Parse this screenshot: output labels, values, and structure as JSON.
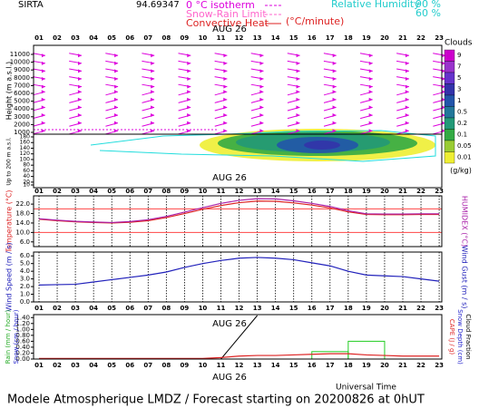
{
  "header": {
    "station": "SIRTA",
    "coords": "94.69347",
    "isotherm": "0 °C isotherm",
    "snow_rain": "Snow-Rain Limit",
    "convective": "Convective Heat",
    "convective_unit": "(°C/minute)",
    "rh": "Relative Humidity",
    "rh90": "90 %",
    "rh60": "60 %"
  },
  "hours": [
    "01",
    "02",
    "03",
    "04",
    "05",
    "06",
    "07",
    "08",
    "09",
    "10",
    "11",
    "12",
    "13",
    "14",
    "15",
    "16",
    "17",
    "18",
    "19",
    "20",
    "21",
    "22",
    "23"
  ],
  "date": "AUG 26",
  "chart_data": [
    {
      "type": "cloud",
      "ylabel": "Height (m a.s.l.)",
      "ylabel_low": "Up to 200 m a.s.l.",
      "yticks": [
        1000,
        2000,
        3000,
        4000,
        5000,
        6000,
        7000,
        8000,
        9000,
        10000,
        11000
      ],
      "ylim": [
        1000,
        11000
      ],
      "low_yticks": [
        10,
        20,
        40,
        60,
        80,
        100,
        120,
        140,
        160,
        180
      ],
      "low_ylim": [
        10,
        180
      ],
      "colorbar": {
        "title": "Clouds",
        "unit": "(g/kg)",
        "labels": [
          9,
          7,
          5,
          3,
          1,
          0.5,
          0.2,
          0.1,
          0.05,
          0.01
        ],
        "colors": [
          "#cc00cc",
          "#9933cc",
          "#6633cc",
          "#3333aa",
          "#2255aa",
          "#227799",
          "#229977",
          "#33aa44",
          "#99cc33",
          "#eeee33"
        ]
      }
    },
    {
      "type": "line",
      "ylabel": "Temperature (°C)",
      "y2label": "HUMIDEX (°C)",
      "ylim": [
        4,
        25.5
      ],
      "yticks": [
        {
          "value": 6,
          "label": "6.0"
        },
        {
          "value": 10,
          "label": "10.0"
        },
        {
          "value": 14,
          "label": "14.0"
        },
        {
          "value": 18,
          "label": "18.0"
        },
        {
          "value": 22,
          "label": "22.0"
        }
      ],
      "ref_lines": [
        10,
        20
      ],
      "grid": true,
      "x": [
        1,
        2,
        3,
        4,
        5,
        6,
        7,
        8,
        9,
        10,
        11,
        12,
        13,
        14,
        15,
        16,
        17,
        18,
        19,
        20,
        21,
        22,
        23
      ],
      "series": [
        {
          "color": "#dd2222",
          "values": [
            15.6,
            15.0,
            14.5,
            14.2,
            14.0,
            14.3,
            15.0,
            16.3,
            18.0,
            19.8,
            21.4,
            22.6,
            23.3,
            23.2,
            22.5,
            21.6,
            20.4,
            18.7,
            17.6,
            17.5,
            17.5,
            17.6,
            17.6
          ]
        },
        {
          "color": "#aa22aa",
          "values": [
            15.8,
            15.2,
            14.7,
            14.4,
            14.2,
            14.6,
            15.4,
            16.8,
            18.6,
            20.5,
            22.3,
            23.6,
            24.3,
            24.2,
            23.4,
            22.3,
            21.0,
            19.2,
            17.9,
            17.8,
            17.8,
            17.9,
            17.9
          ]
        }
      ]
    },
    {
      "type": "line",
      "ylabel": "Wind Speed (m / s)",
      "y2label": "Wind Gust (m / s)",
      "ylim": [
        0,
        6.5
      ],
      "yticks": [
        {
          "value": 0,
          "label": "0.0"
        },
        {
          "value": 1,
          "label": "1.0"
        },
        {
          "value": 2,
          "label": "2.0"
        },
        {
          "value": 3,
          "label": "3.0"
        },
        {
          "value": 4,
          "label": "4.0"
        },
        {
          "value": 5,
          "label": "5.0"
        },
        {
          "value": 6,
          "label": "6.0"
        }
      ],
      "grid": true,
      "x": [
        1,
        2,
        3,
        4,
        5,
        6,
        7,
        8,
        9,
        10,
        11,
        12,
        13,
        14,
        15,
        16,
        17,
        18,
        19,
        20,
        21,
        22,
        23
      ],
      "series": [
        {
          "color": "#2222bb",
          "values": [
            2.2,
            2.25,
            2.3,
            2.6,
            2.9,
            3.2,
            3.5,
            3.9,
            4.5,
            5.0,
            5.4,
            5.7,
            5.8,
            5.7,
            5.5,
            5.1,
            4.7,
            4.0,
            3.5,
            3.4,
            3.3,
            3.0,
            2.7
          ]
        }
      ]
    },
    {
      "type": "precip",
      "ylabels": [
        {
          "text": "Rain (mm / hour)",
          "color": "#22aa22"
        },
        {
          "text": "Snow (cm / hour)",
          "color": "#2222cc"
        }
      ],
      "y2labels": [
        {
          "text": "CAPE (J / g)",
          "color": "#dd2222"
        },
        {
          "text": "Snow Depth (cm)",
          "color": "#2222cc"
        },
        {
          "text": "Cloud Fraction",
          "color": "#000000"
        }
      ],
      "ylim": [
        0,
        1.5
      ],
      "yticks": [
        {
          "value": 0,
          "label": "0.00"
        },
        {
          "value": 0.2,
          "label": "0.20"
        },
        {
          "value": 0.4,
          "label": "0.40"
        },
        {
          "value": 0.6,
          "label": "0.60"
        },
        {
          "value": 0.8,
          "label": "0.80"
        },
        {
          "value": 1,
          "label": "1.00"
        },
        {
          "value": 1.2,
          "label": "1.20"
        },
        {
          "value": 1.4,
          "label": "1.40"
        }
      ],
      "rain": {
        "color": "#22cc22",
        "bins": [
          16,
          18,
          20
        ],
        "values": [
          0.25,
          0.6
        ]
      },
      "x": [
        1,
        2,
        3,
        4,
        5,
        6,
        7,
        8,
        9,
        10,
        11,
        12,
        13,
        14,
        15,
        16,
        17,
        18,
        19,
        20,
        21,
        22,
        23
      ],
      "series": [
        {
          "color": "#dd2222",
          "values": [
            0.02,
            0.02,
            0.02,
            0.02,
            0.02,
            0.02,
            0.02,
            0.02,
            0.02,
            0.02,
            0.05,
            0.1,
            0.12,
            0.12,
            0.14,
            0.16,
            0.18,
            0.18,
            0.14,
            0.12,
            0.1,
            0.1,
            0.1
          ]
        }
      ]
    }
  ],
  "footer": {
    "xlabel": "Universal Time",
    "caption": "Modele Atmospherique LMDZ / Forecast starting on 20200826 at 0hUT"
  }
}
